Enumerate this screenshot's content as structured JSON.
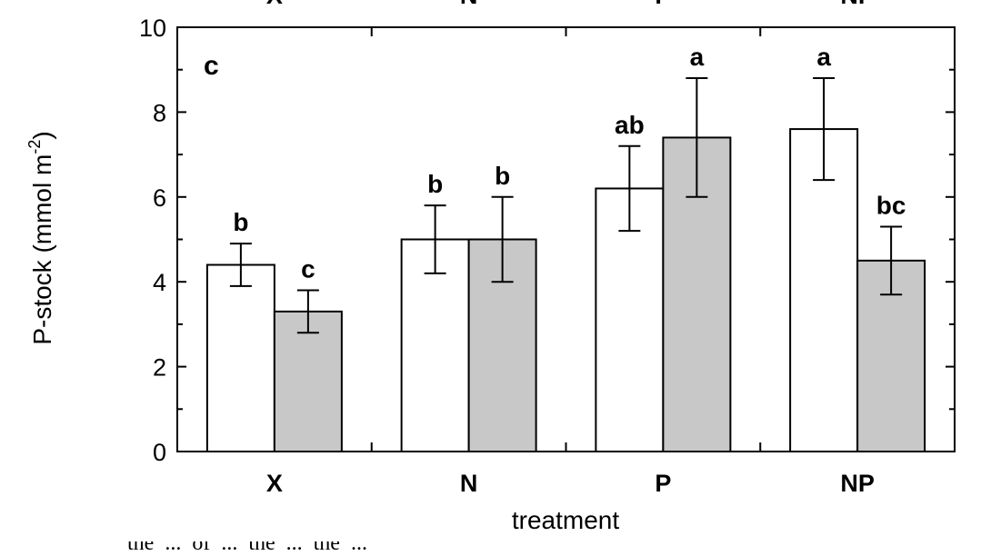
{
  "chart_data": {
    "type": "bar",
    "panel_label": "c",
    "categories": [
      "X",
      "N",
      "P",
      "NP"
    ],
    "top_categories": [
      "X",
      "N",
      "P",
      "NP"
    ],
    "xlabel": "treatment",
    "ylabel": "P-stock (mmol m",
    "ylabel_superscript": "-2",
    "ylabel_close": ")",
    "ylim": [
      0,
      10
    ],
    "yticks": [
      0,
      2,
      4,
      6,
      8,
      10
    ],
    "grid": false,
    "series": [
      {
        "fill": "#ffffff",
        "values": [
          4.4,
          5.0,
          6.2,
          7.6
        ],
        "errors": [
          0.5,
          0.8,
          1.0,
          1.2
        ],
        "significance": [
          "b",
          "b",
          "ab",
          "a"
        ]
      },
      {
        "fill": "#c8c8c8",
        "values": [
          3.3,
          5.0,
          7.4,
          4.5
        ],
        "errors": [
          0.5,
          1.0,
          1.4,
          0.8
        ],
        "significance": [
          "c",
          "b",
          "a",
          "bc"
        ]
      }
    ]
  },
  "caption_fragment": "the ... of ... the ... the ..."
}
